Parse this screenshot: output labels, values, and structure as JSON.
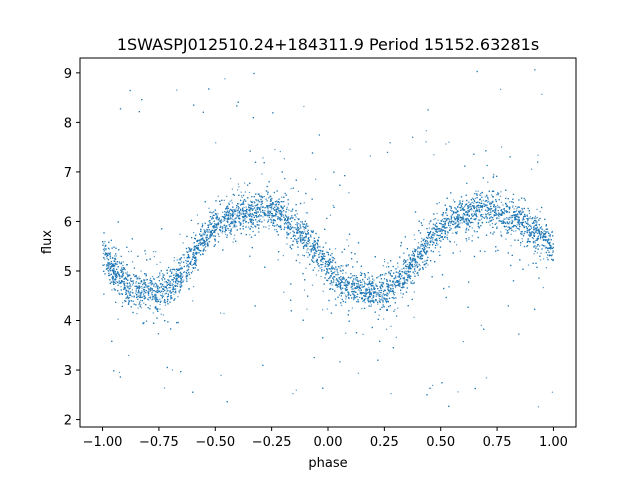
{
  "chart_data": {
    "type": "scatter",
    "title": "1SWASPJ012510.24+184311.9 Period 15152.63281s",
    "xlabel": "phase",
    "ylabel": "flux",
    "xlim": [
      -1.1,
      1.1
    ],
    "ylim": [
      1.85,
      9.3
    ],
    "xticks": [
      -1.0,
      -0.75,
      -0.5,
      -0.25,
      0.0,
      0.25,
      0.5,
      0.75,
      1.0
    ],
    "xtick_labels": [
      "−1.00",
      "−0.75",
      "−0.50",
      "−0.25",
      "0.00",
      "0.25",
      "0.50",
      "0.75",
      "1.00"
    ],
    "yticks": [
      2,
      3,
      4,
      5,
      6,
      7,
      8,
      9
    ],
    "ytick_labels": [
      "2",
      "3",
      "4",
      "5",
      "6",
      "7",
      "8",
      "9"
    ],
    "grid": false,
    "legend": "none",
    "color": "#1f77b4",
    "series": [
      {
        "x": [
          -1.0,
          -0.95,
          -0.9,
          -0.85,
          -0.8,
          -0.75,
          -0.7,
          -0.65,
          -0.6,
          -0.55,
          -0.5,
          -0.45,
          -0.4,
          -0.35,
          -0.3,
          -0.25,
          -0.2,
          -0.15,
          -0.1,
          -0.05,
          0.0,
          0.05,
          0.1,
          0.15,
          0.2,
          0.25,
          0.3,
          0.35,
          0.4,
          0.45,
          0.5,
          0.55,
          0.6,
          0.65,
          0.7,
          0.75,
          0.8,
          0.85,
          0.9,
          0.95,
          1.0
        ],
        "y": [
          5.45,
          5.0,
          4.75,
          4.6,
          4.55,
          4.6,
          4.7,
          4.95,
          5.3,
          5.65,
          5.9,
          6.05,
          6.15,
          6.2,
          6.25,
          6.2,
          6.1,
          5.9,
          5.65,
          5.35,
          5.05,
          4.8,
          4.65,
          4.6,
          4.55,
          4.6,
          4.75,
          5.0,
          5.3,
          5.6,
          5.85,
          6.0,
          6.1,
          6.2,
          6.25,
          6.2,
          6.1,
          6.0,
          5.85,
          5.7,
          5.45
        ]
      }
    ]
  }
}
